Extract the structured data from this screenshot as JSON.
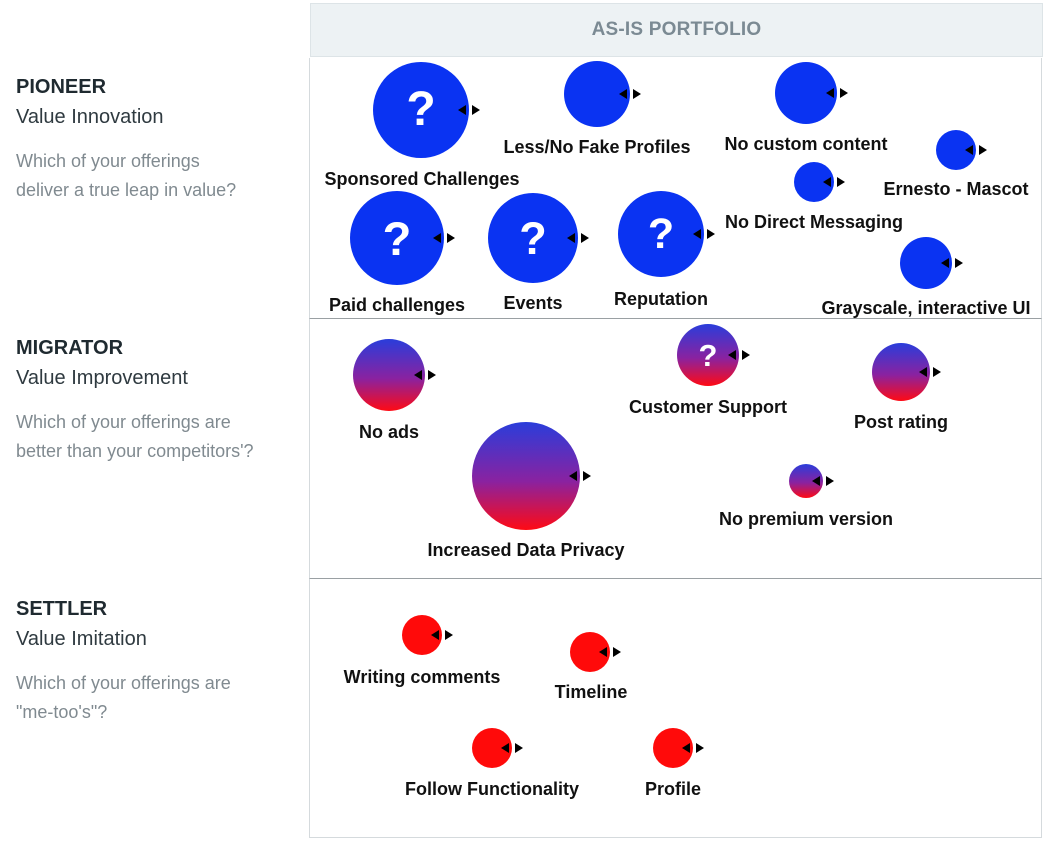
{
  "header": {
    "title": "AS-IS PORTFOLIO"
  },
  "sections": [
    {
      "title": "PIONEER",
      "subtitle": "Value Innovation",
      "question_lines": [
        "Which of your offerings",
        "deliver a true leap in value?"
      ]
    },
    {
      "title": "MIGRATOR",
      "subtitle": "Value Improvement",
      "question_lines": [
        "Which of your offerings are",
        "better than your competitors'?"
      ]
    },
    {
      "title": "SETTLER",
      "subtitle": "Value Imitation",
      "question_lines": [
        "Which of your offerings are",
        "\"me-too's\"?"
      ]
    }
  ],
  "unknown_marker": "?",
  "colors": {
    "pioneer": "#0a33f2",
    "migrator_top": "#2a3ddb",
    "migrator_bottom": "#ff0a14",
    "settler": "#ff0a0a",
    "header_bg": "#edf2f4",
    "header_text": "#7b8a93"
  },
  "offerings": [
    {
      "label": "Sponsored Challenges",
      "category": "pioneer",
      "unknown": true
    },
    {
      "label": "Less/No Fake Profiles",
      "category": "pioneer",
      "unknown": false
    },
    {
      "label": "No custom content",
      "category": "pioneer",
      "unknown": false
    },
    {
      "label": "Ernesto - Mascot",
      "category": "pioneer",
      "unknown": false
    },
    {
      "label": "No Direct Messaging",
      "category": "pioneer",
      "unknown": false
    },
    {
      "label": "Paid challenges",
      "category": "pioneer",
      "unknown": true
    },
    {
      "label": "Events",
      "category": "pioneer",
      "unknown": true
    },
    {
      "label": "Reputation",
      "category": "pioneer",
      "unknown": true
    },
    {
      "label": "Grayscale, interactive UI",
      "category": "pioneer",
      "unknown": false
    },
    {
      "label": "No ads",
      "category": "migrator",
      "unknown": false
    },
    {
      "label": "Customer Support",
      "category": "migrator",
      "unknown": true
    },
    {
      "label": "Post rating",
      "category": "migrator",
      "unknown": false
    },
    {
      "label": "Increased Data Privacy",
      "category": "migrator",
      "unknown": false
    },
    {
      "label": "No premium version",
      "category": "migrator",
      "unknown": false
    },
    {
      "label": "Writing comments",
      "category": "settler",
      "unknown": false
    },
    {
      "label": "Timeline",
      "category": "settler",
      "unknown": false
    },
    {
      "label": "Follow Functionality",
      "category": "settler",
      "unknown": false
    },
    {
      "label": "Profile",
      "category": "settler",
      "unknown": false
    }
  ]
}
